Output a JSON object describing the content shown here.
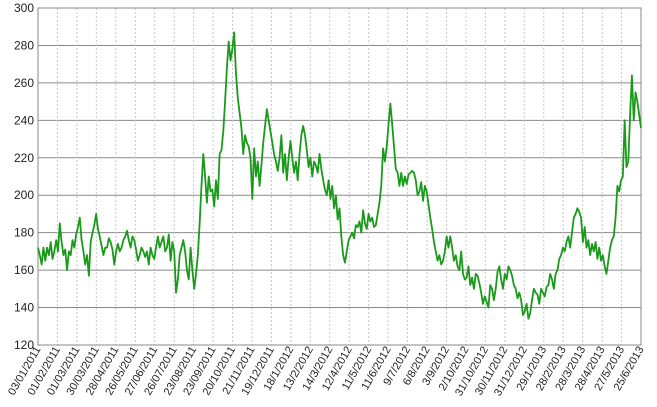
{
  "chart_data": {
    "type": "line",
    "title": "",
    "xlabel": "",
    "ylabel": "",
    "ylim": [
      120,
      300
    ],
    "y_ticks": [
      "120",
      "140",
      "160",
      "180",
      "200",
      "220",
      "240",
      "260",
      "280",
      "300"
    ],
    "x_tick_labels": [
      "03/01/2011",
      "01/02/2011",
      "01/03/2011",
      "30/03/2011",
      "28/04/2011",
      "26/05/2011",
      "27/06/2011",
      "26/07/2011",
      "23/08/2011",
      "23/09/2011",
      "20/10/2011",
      "21/11/2011",
      "19/12/2011",
      "18/1/2012",
      "13/2/2012",
      "14/3/2012",
      "12/4/2012",
      "11/5/2012",
      "11/6/2012",
      "9/7/2012",
      "6/8/2012",
      "3/9/2012",
      "2/10/2012",
      "31/10/2012",
      "30/11/2012",
      "31/12/2012",
      "29/1/2013",
      "28/2/2013",
      "28/3/2013",
      "28/4/2013",
      "27/5/2013",
      "25/6/2013"
    ],
    "grid": "horizontal solid, vertical dashed",
    "line_color": "#1a9a1a",
    "series": [
      {
        "values": [
          172,
          168,
          163,
          172,
          165,
          172,
          168,
          175,
          166,
          170,
          176,
          170,
          185,
          175,
          168,
          171,
          160,
          170,
          168,
          176,
          172,
          179,
          183,
          188,
          176,
          170,
          163,
          168,
          157,
          175,
          180,
          184,
          190,
          182,
          178,
          173,
          168,
          172,
          172,
          177,
          175,
          171,
          163,
          170,
          174,
          170,
          172,
          176,
          178,
          181,
          176,
          172,
          178,
          176,
          171,
          165,
          168,
          172,
          170,
          167,
          170,
          163,
          172,
          168,
          166,
          172,
          178,
          172,
          175,
          178,
          170,
          172,
          179,
          165,
          175,
          170,
          148,
          155,
          168,
          172,
          176,
          170,
          160,
          155,
          172,
          160,
          150,
          158,
          168,
          185,
          205,
          222,
          210,
          196,
          210,
          202,
          203,
          194,
          208,
          198,
          222,
          224,
          234,
          250,
          268,
          282,
          272,
          278,
          287,
          265,
          252,
          244,
          236,
          222,
          232,
          228,
          226,
          220,
          198,
          225,
          210,
          218,
          205,
          216,
          228,
          237,
          246,
          240,
          234,
          228,
          222,
          218,
          213,
          220,
          232,
          212,
          222,
          208,
          220,
          229,
          220,
          212,
          218,
          208,
          222,
          232,
          237,
          232,
          224,
          215,
          220,
          210,
          218,
          216,
          212,
          222,
          214,
          208,
          203,
          200,
          208,
          198,
          205,
          193,
          200,
          187,
          193,
          178,
          168,
          164,
          170,
          176,
          178,
          180,
          177,
          184,
          183,
          186,
          180,
          192,
          185,
          182,
          190,
          186,
          188,
          183,
          184,
          190,
          196,
          205,
          225,
          218,
          226,
          238,
          249,
          238,
          226,
          214,
          212,
          205,
          212,
          205,
          210,
          206,
          211,
          212,
          213,
          212,
          208,
          200,
          202,
          207,
          197,
          205,
          202,
          195,
          188,
          182,
          175,
          170,
          165,
          168,
          163,
          165,
          170,
          178,
          172,
          178,
          172,
          165,
          168,
          162,
          160,
          170,
          158,
          155,
          156,
          162,
          152,
          156,
          150,
          158,
          157,
          153,
          148,
          142,
          146,
          143,
          140,
          152,
          150,
          144,
          150,
          159,
          162,
          155,
          150,
          158,
          155,
          162,
          160,
          157,
          152,
          150,
          145,
          148,
          144,
          136,
          138,
          142,
          134,
          137,
          144,
          150,
          148,
          147,
          142,
          150,
          148,
          146,
          151,
          152,
          158,
          155,
          150,
          158,
          160,
          166,
          168,
          172,
          170,
          175,
          178,
          172,
          180,
          188,
          190,
          193,
          191,
          188,
          175,
          183,
          172,
          176,
          168,
          174,
          170,
          175,
          166,
          172,
          165,
          168,
          162,
          158,
          165,
          172,
          176,
          178,
          188,
          205,
          202,
          208,
          210,
          240,
          215,
          218,
          243,
          264,
          240,
          255,
          250,
          243,
          236
        ]
      }
    ]
  }
}
